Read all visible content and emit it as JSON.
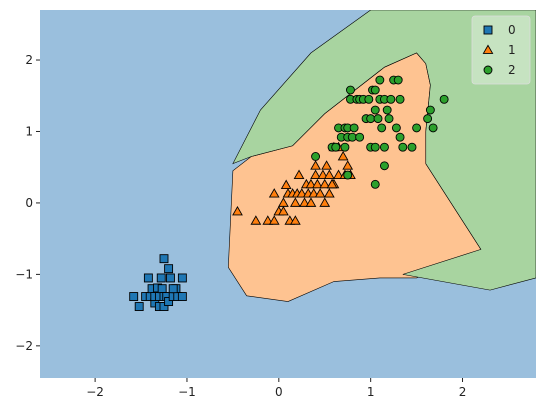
{
  "chart_data": {
    "type": "scatter",
    "title": "",
    "xlabel": "",
    "ylabel": "",
    "xlim": [
      -2.6,
      2.8
    ],
    "ylim": [
      -2.45,
      2.7
    ],
    "xticks": [
      -2,
      -1,
      0,
      1,
      2
    ],
    "yticks": [
      -2,
      -1,
      0,
      1,
      2
    ],
    "grid": false,
    "legend_position": "top-right",
    "decision_regions": [
      {
        "class": "0",
        "color": "#9abfdd"
      },
      {
        "class": "1",
        "color": "#fec391",
        "polygon": [
          [
            -0.5,
            0.45
          ],
          [
            -0.55,
            -0.9
          ],
          [
            -0.35,
            -1.3
          ],
          [
            0.1,
            -1.38
          ],
          [
            0.6,
            -1.1
          ],
          [
            1.1,
            -1.05
          ],
          [
            1.5,
            -1.05
          ],
          [
            2.2,
            -0.65
          ],
          [
            1.6,
            0.55
          ],
          [
            1.6,
            1.0
          ],
          [
            1.65,
            1.65
          ],
          [
            1.6,
            1.95
          ],
          [
            1.5,
            2.1
          ],
          [
            1.15,
            1.9
          ],
          [
            0.5,
            1.25
          ],
          [
            0.15,
            0.8
          ],
          [
            -0.3,
            0.65
          ]
        ]
      },
      {
        "class": "2",
        "color": "#a8d4a0",
        "polygon": [
          [
            -0.5,
            0.55
          ],
          [
            -0.3,
            0.65
          ],
          [
            0.15,
            0.8
          ],
          [
            0.5,
            1.25
          ],
          [
            1.15,
            1.9
          ],
          [
            1.5,
            2.1
          ],
          [
            1.6,
            1.95
          ],
          [
            1.65,
            1.65
          ],
          [
            1.6,
            1.0
          ],
          [
            1.6,
            0.55
          ],
          [
            2.2,
            -0.65
          ],
          [
            1.35,
            -1.0
          ],
          [
            1.35,
            -1.0
          ],
          [
            2.3,
            -1.22
          ],
          [
            2.8,
            -1.05
          ],
          [
            2.8,
            2.7
          ],
          [
            1.0,
            2.7
          ],
          [
            0.35,
            2.1
          ],
          [
            -0.2,
            1.3
          ]
        ]
      }
    ],
    "series": [
      {
        "name": "0",
        "marker": "square",
        "color": "#1f77b4",
        "points": [
          [
            -1.58,
            -1.31
          ],
          [
            -1.52,
            -1.45
          ],
          [
            -1.45,
            -1.31
          ],
          [
            -1.42,
            -1.05
          ],
          [
            -1.4,
            -1.31
          ],
          [
            -1.38,
            -1.2
          ],
          [
            -1.35,
            -1.4
          ],
          [
            -1.35,
            -1.31
          ],
          [
            -1.32,
            -1.19
          ],
          [
            -1.3,
            -1.31
          ],
          [
            -1.3,
            -1.45
          ],
          [
            -1.28,
            -1.05
          ],
          [
            -1.27,
            -1.2
          ],
          [
            -1.25,
            -1.31
          ],
          [
            -1.25,
            -1.45
          ],
          [
            -1.22,
            -1.31
          ],
          [
            -1.2,
            -1.38
          ],
          [
            -1.18,
            -1.05
          ],
          [
            -1.15,
            -1.31
          ],
          [
            -1.12,
            -1.2
          ],
          [
            -1.1,
            -1.31
          ],
          [
            -1.05,
            -1.05
          ],
          [
            -1.05,
            -1.31
          ],
          [
            -1.25,
            -0.78
          ],
          [
            -1.2,
            -0.92
          ],
          [
            -1.15,
            -1.2
          ]
        ]
      },
      {
        "name": "1",
        "marker": "triangle",
        "color": "#ff7f0e",
        "points": [
          [
            -0.45,
            -0.12
          ],
          [
            -0.25,
            -0.25
          ],
          [
            -0.12,
            -0.25
          ],
          [
            -0.05,
            0.13
          ],
          [
            -0.05,
            -0.25
          ],
          [
            0.0,
            -0.12
          ],
          [
            0.05,
            0.0
          ],
          [
            0.05,
            -0.12
          ],
          [
            0.08,
            0.25
          ],
          [
            0.1,
            0.13
          ],
          [
            0.12,
            -0.25
          ],
          [
            0.15,
            0.13
          ],
          [
            0.18,
            0.0
          ],
          [
            0.18,
            -0.25
          ],
          [
            0.2,
            0.13
          ],
          [
            0.22,
            0.39
          ],
          [
            0.25,
            0.13
          ],
          [
            0.28,
            0.0
          ],
          [
            0.3,
            0.26
          ],
          [
            0.32,
            0.13
          ],
          [
            0.35,
            0.26
          ],
          [
            0.35,
            0.0
          ],
          [
            0.38,
            0.13
          ],
          [
            0.4,
            0.39
          ],
          [
            0.4,
            0.52
          ],
          [
            0.42,
            0.26
          ],
          [
            0.45,
            0.13
          ],
          [
            0.48,
            0.39
          ],
          [
            0.5,
            0.26
          ],
          [
            0.5,
            0.0
          ],
          [
            0.52,
            0.52
          ],
          [
            0.55,
            0.13
          ],
          [
            0.55,
            0.39
          ],
          [
            0.58,
            0.26
          ],
          [
            0.6,
            0.26
          ],
          [
            0.65,
            0.78
          ],
          [
            0.65,
            0.39
          ],
          [
            0.7,
            0.65
          ],
          [
            0.72,
            0.39
          ],
          [
            0.75,
            0.52
          ],
          [
            0.78,
            0.39
          ],
          [
            0.6,
            0.78
          ],
          [
            0.58,
            0.26
          ]
        ]
      },
      {
        "name": "2",
        "marker": "circle",
        "color": "#2ca02c",
        "points": [
          [
            0.4,
            0.65
          ],
          [
            0.58,
            0.78
          ],
          [
            0.62,
            0.78
          ],
          [
            0.65,
            1.05
          ],
          [
            0.68,
            0.92
          ],
          [
            0.72,
            1.05
          ],
          [
            0.72,
            0.78
          ],
          [
            0.75,
            1.05
          ],
          [
            0.75,
            0.92
          ],
          [
            0.78,
            1.45
          ],
          [
            0.78,
            1.58
          ],
          [
            0.8,
            0.92
          ],
          [
            0.82,
            1.05
          ],
          [
            0.85,
            1.45
          ],
          [
            0.88,
            1.45
          ],
          [
            0.88,
            0.92
          ],
          [
            0.92,
            1.45
          ],
          [
            0.95,
            1.18
          ],
          [
            0.98,
            1.45
          ],
          [
            1.0,
            1.18
          ],
          [
            1.0,
            0.78
          ],
          [
            1.02,
            1.58
          ],
          [
            1.05,
            1.58
          ],
          [
            1.05,
            1.3
          ],
          [
            1.05,
            0.78
          ],
          [
            1.08,
            1.18
          ],
          [
            1.1,
            1.72
          ],
          [
            1.1,
            1.45
          ],
          [
            1.12,
            1.05
          ],
          [
            1.15,
            1.45
          ],
          [
            1.15,
            0.78
          ],
          [
            1.18,
            1.3
          ],
          [
            1.2,
            1.18
          ],
          [
            1.22,
            1.45
          ],
          [
            1.25,
            1.72
          ],
          [
            1.28,
            1.05
          ],
          [
            1.3,
            1.72
          ],
          [
            1.32,
            1.45
          ],
          [
            1.32,
            0.92
          ],
          [
            1.35,
            0.78
          ],
          [
            1.45,
            0.78
          ],
          [
            1.5,
            1.05
          ],
          [
            1.62,
            1.18
          ],
          [
            1.65,
            1.3
          ],
          [
            1.68,
            1.05
          ],
          [
            1.8,
            1.45
          ],
          [
            1.05,
            0.26
          ],
          [
            1.15,
            0.52
          ],
          [
            0.75,
            0.39
          ]
        ]
      }
    ],
    "legend": [
      "0",
      "1",
      "2"
    ]
  }
}
